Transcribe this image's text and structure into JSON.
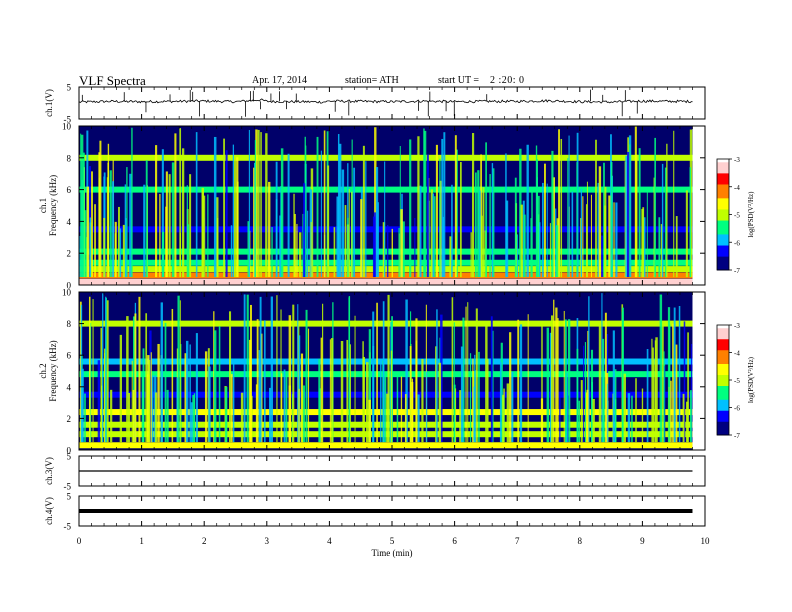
{
  "header": {
    "title": "VLF  Spectra",
    "date": "Apr. 17, 2014",
    "station": "station= ATH",
    "start_label": "start  UT  =",
    "start_value": "2  :20: 0"
  },
  "colors": {
    "colormap": [
      "#000080",
      "#0000ff",
      "#00c0ff",
      "#00ff80",
      "#c0ff00",
      "#ffff00",
      "#ff8000",
      "#ff0000",
      "#ffd0d0",
      "#ffffff"
    ]
  },
  "chart_data": [
    {
      "type": "line",
      "panel": "ch.1",
      "ylabel": "ch.1(V)",
      "ylim": [
        -5,
        5
      ],
      "yticks": [
        "5",
        "-5"
      ],
      "xlim": [
        0,
        10
      ],
      "description_of_series": "continuous waveform near 0.5 V with spikes",
      "x": [
        0,
        0.5,
        1,
        1.5,
        2,
        2.5,
        2.9,
        3,
        3.5,
        3.9,
        4,
        4.5,
        5,
        5.5,
        6,
        6.5,
        7,
        7.5,
        8,
        8.5,
        9,
        9.5,
        9.8
      ],
      "y": [
        0.3,
        0.5,
        0.4,
        0.5,
        0.6,
        0.4,
        1.0,
        0.5,
        0.4,
        0.3,
        0.6,
        0.5,
        0.4,
        0.6,
        0.4,
        0.5,
        0.5,
        0.7,
        0.4,
        0.3,
        0.6,
        0.5,
        0.5
      ]
    },
    {
      "type": "heatmap",
      "panel": "ch.1",
      "ylabel_top": "ch.1",
      "ylabel": "Frequency  (kHz)",
      "ylim": [
        0,
        10
      ],
      "yticks": [
        "0",
        "2",
        "4",
        "6",
        "8",
        "10"
      ],
      "xlim": [
        0,
        9.8
      ],
      "colorbar": {
        "label": "log(PSD(V²/Hz)",
        "range": [
          -7,
          -3
        ],
        "ticks": [
          "-3",
          "-4",
          "-5",
          "-6",
          "-7"
        ]
      },
      "bands_khz_level": [
        [
          0.2,
          -3.2
        ],
        [
          0.6,
          -4.2
        ],
        [
          1.0,
          -5.0
        ],
        [
          1.4,
          -5.5
        ],
        [
          2.1,
          -5.4
        ],
        [
          3.5,
          -6.3
        ],
        [
          6.0,
          -5.3
        ],
        [
          8.0,
          -5.0
        ]
      ]
    },
    {
      "type": "heatmap",
      "panel": "ch.2",
      "ylabel_top": "ch.2",
      "ylabel": "Frequency  (kHz)",
      "ylim": [
        0,
        10
      ],
      "yticks": [
        "0",
        "2",
        "4",
        "6",
        "8",
        "10"
      ],
      "xlim": [
        0,
        9.8
      ],
      "colorbar": {
        "label": "log(PSD(V²/Hz)",
        "range": [
          -7,
          -3
        ],
        "ticks": [
          "-3",
          "-4",
          "-5",
          "-6",
          "-7"
        ]
      },
      "bands_khz_level": [
        [
          0.3,
          -4.6
        ],
        [
          1.0,
          -5.0
        ],
        [
          1.6,
          -4.8
        ],
        [
          2.4,
          -4.5
        ],
        [
          3.5,
          -6.2
        ],
        [
          4.8,
          -5.6
        ],
        [
          5.6,
          -6.0
        ],
        [
          8.0,
          -5.2
        ]
      ]
    },
    {
      "type": "line",
      "panel": "ch.3",
      "ylabel": "ch.3(V)",
      "ylim": [
        -5,
        5
      ],
      "yticks": [
        "5",
        "-5"
      ],
      "xlim": [
        0,
        10
      ],
      "x": [
        0,
        9.8
      ],
      "y": [
        0,
        0
      ]
    },
    {
      "type": "line",
      "panel": "ch.4",
      "ylabel": "ch.4(V)",
      "ylim": [
        -5,
        5
      ],
      "yticks": [
        "5",
        "-5"
      ],
      "xlim": [
        0,
        10
      ],
      "xlabel": "Time  (min)",
      "xticks": [
        "0",
        "1",
        "2",
        "3",
        "4",
        "5",
        "6",
        "7",
        "8",
        "9",
        "10"
      ],
      "x": [
        0,
        9.8
      ],
      "y": [
        0,
        0
      ]
    }
  ]
}
